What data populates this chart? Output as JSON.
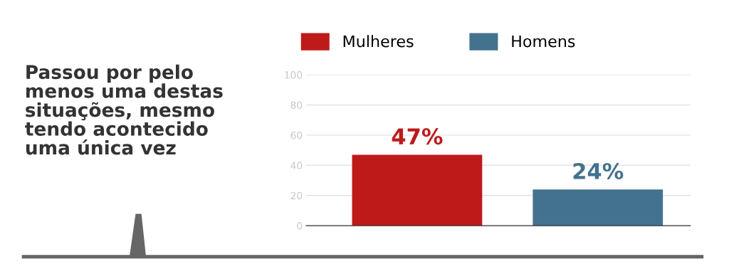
{
  "chart_data": {
    "type": "bar",
    "title": "Passou por pelo\nmenos uma destas\nsituações, mesmo\ntendo acontecido\numa única vez",
    "categories": [
      null,
      null
    ],
    "series": [
      {
        "name": "Mulheres",
        "color": "#be1a1a",
        "values": [
          47,
          null
        ],
        "value_labels": [
          "47%",
          null
        ]
      },
      {
        "name": "Homens",
        "color": "#43728f",
        "values": [
          null,
          24
        ],
        "value_labels": [
          null,
          "24%"
        ]
      }
    ],
    "ylim": [
      0,
      100
    ],
    "yticks": [
      0,
      20,
      40,
      60,
      80,
      100
    ],
    "grid": "y",
    "legend": "top"
  }
}
